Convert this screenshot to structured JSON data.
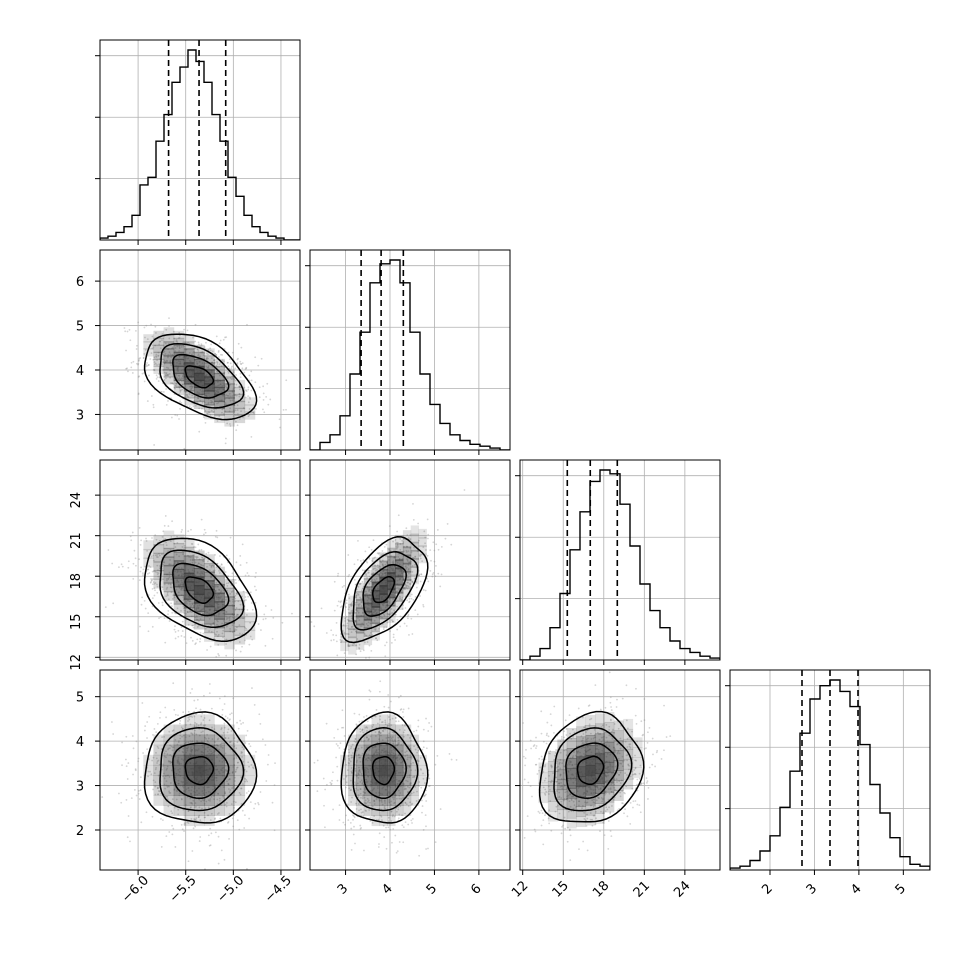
{
  "chart_data": {
    "type": "corner",
    "title": "",
    "grid": true,
    "params": [
      {
        "range": [
          -6.4,
          -4.3
        ],
        "ticks": [
          -6.0,
          -5.5,
          -5.0,
          -4.5
        ],
        "tick_labels": [
          "−6.0",
          "−5.5",
          "−5.0",
          "−4.5"
        ],
        "quantiles": [
          -5.68,
          -5.36,
          -5.08
        ],
        "hist_center": -5.36,
        "hist_sd": 0.29,
        "hist_bins": [
          0.01,
          0.02,
          0.04,
          0.07,
          0.13,
          0.29,
          0.33,
          0.52,
          0.66,
          0.83,
          0.91,
          1.0,
          0.94,
          0.83,
          0.66,
          0.52,
          0.33,
          0.23,
          0.13,
          0.07,
          0.04,
          0.02,
          0.01,
          0.0,
          0.0
        ]
      },
      {
        "range": [
          2.2,
          6.7
        ],
        "ticks": [
          3,
          4,
          5,
          6
        ],
        "tick_labels": [
          "3",
          "4",
          "5",
          "6"
        ],
        "quantiles": [
          3.35,
          3.8,
          4.3
        ],
        "hist_center": 3.85,
        "hist_sd": 0.48,
        "hist_bins": [
          0.0,
          0.04,
          0.08,
          0.18,
          0.4,
          0.62,
          0.88,
          0.98,
          1.0,
          0.88,
          0.62,
          0.4,
          0.24,
          0.14,
          0.08,
          0.05,
          0.03,
          0.02,
          0.01,
          0.0
        ]
      },
      {
        "range": [
          11.8,
          26.6
        ],
        "ticks": [
          12,
          15,
          18,
          21,
          24
        ],
        "tick_labels": [
          "12",
          "15",
          "18",
          "21",
          "24"
        ],
        "quantiles": [
          15.3,
          17.0,
          19.0
        ],
        "hist_center": 17.0,
        "hist_sd": 1.9,
        "hist_bins": [
          0.0,
          0.02,
          0.06,
          0.17,
          0.35,
          0.58,
          0.78,
          0.94,
          1.0,
          0.98,
          0.82,
          0.6,
          0.4,
          0.26,
          0.17,
          0.1,
          0.06,
          0.04,
          0.02,
          0.01
        ]
      },
      {
        "range": [
          1.1,
          5.6
        ],
        "ticks": [
          2,
          3,
          4,
          5
        ],
        "tick_labels": [
          "2",
          "3",
          "4",
          "5"
        ],
        "quantiles": [
          2.72,
          3.35,
          3.98
        ],
        "hist_center": 3.35,
        "hist_sd": 0.62,
        "hist_bins": [
          0.01,
          0.02,
          0.05,
          0.1,
          0.18,
          0.33,
          0.52,
          0.72,
          0.9,
          0.97,
          1.0,
          0.94,
          0.86,
          0.66,
          0.45,
          0.3,
          0.17,
          0.07,
          0.03,
          0.02
        ]
      }
    ],
    "pair_correlations": [
      {
        "row": 1,
        "col": 0,
        "rho": -0.45
      },
      {
        "row": 2,
        "col": 0,
        "rho": -0.4
      },
      {
        "row": 2,
        "col": 1,
        "rho": 0.5
      },
      {
        "row": 3,
        "col": 0,
        "rho": 0.0
      },
      {
        "row": 3,
        "col": 1,
        "rho": 0.0
      },
      {
        "row": 3,
        "col": 2,
        "rho": 0.15
      }
    ],
    "contour_levels_sigma": [
      0.5,
      1.0,
      1.5,
      2.0
    ],
    "colors": {
      "hist_line": "#000000",
      "contour": "#000000",
      "points": "#888888",
      "grid": "#b0b0b0",
      "density": "#3a3a3a"
    }
  }
}
